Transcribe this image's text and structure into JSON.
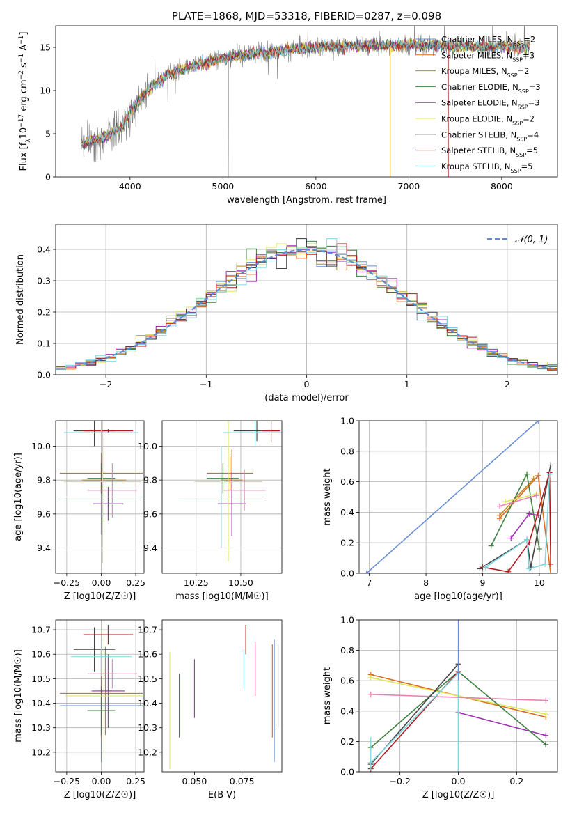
{
  "colors": {
    "series": [
      "#6a8fd6",
      "#e06a1c",
      "#c28414",
      "#3f8040",
      "#9e2fb0",
      "#dce65a",
      "#444444",
      "#b3171d",
      "#7fd6df"
    ],
    "pink": "#e97fb5",
    "raw_spectrum": "#808080",
    "normal_curve": "#5b8ad6",
    "grid": "#b0b0b0"
  },
  "chart_data": [
    {
      "id": "spectrum",
      "type": "line",
      "title": "PLATE=1868, MJD=53318, FIBERID=0287, z=0.098",
      "xlabel": "wavelength [Angstrom, rest frame]",
      "ylabel": "Flux [f_λ10^-17 erg cm^-2 s^-1 A^-1]",
      "xlim": [
        3200,
        8600
      ],
      "ylim": [
        0,
        17.5
      ],
      "xticks": [
        4000,
        5000,
        6000,
        7000,
        8000
      ],
      "yticks": [
        0,
        5,
        10,
        15
      ],
      "grid": false,
      "legend_position": "top-right",
      "series": [
        {
          "name": "Chabrier MILES, N_SSP=2"
        },
        {
          "name": "Salpeter MILES, N_SSP=3"
        },
        {
          "name": "Kroupa MILES, N_SSP=2"
        },
        {
          "name": "Chabrier ELODIE, N_SSP=3"
        },
        {
          "name": "Salpeter ELODIE, N_SSP=3"
        },
        {
          "name": "Kroupa ELODIE, N_SSP=2"
        },
        {
          "name": "Chabrier STELIB, N_SSP=4"
        },
        {
          "name": "Salpeter STELIB, N_SSP=5"
        },
        {
          "name": "Kroupa STELIB, N_SSP=5"
        }
      ],
      "continuum": {
        "x": [
          3500,
          3700,
          3900,
          4000,
          4200,
          4400,
          4700,
          5000,
          5300,
          5600,
          6000,
          6500,
          7000,
          7400,
          8300
        ],
        "y": [
          3.9,
          4.5,
          5.6,
          7.5,
          10.2,
          11.8,
          12.9,
          13.8,
          14.2,
          14.6,
          15.0,
          15.2,
          15.3,
          15.2,
          15.0
        ]
      }
    },
    {
      "id": "residuals",
      "type": "histogram",
      "xlabel": "(data-model)/error",
      "ylabel": "Normed distribution",
      "xlim": [
        -2.5,
        2.5
      ],
      "ylim": [
        0,
        0.48
      ],
      "xticks": [
        -2,
        -1,
        0,
        1,
        2
      ],
      "yticks": [
        0.0,
        0.1,
        0.2,
        0.3,
        0.4
      ],
      "grid": true,
      "legend_position": "top-right",
      "reference_curve": {
        "name": "𝒩(0, 1)",
        "mean": 0,
        "sigma": 1
      },
      "bin_width": 0.1
    },
    {
      "id": "age-vs-Z",
      "type": "errorbar",
      "xlabel": "Z [log10(Z/Z☉)]",
      "ylabel": "age [log10(age/yr)]",
      "xlim": [
        -0.33,
        0.31
      ],
      "ylim": [
        9.25,
        10.15
      ],
      "xticks": [
        -0.25,
        0.0,
        0.25
      ],
      "yticks": [
        9.4,
        9.6,
        9.8,
        10.0
      ],
      "grid": true,
      "points": [
        {
          "series": 0,
          "x": 0.0,
          "y": 9.7,
          "xerr": 0.3,
          "yerr": 0.22
        },
        {
          "series": 1,
          "x": 0.0,
          "y": 9.84,
          "xerr": 0.3,
          "yerr": 0.12
        },
        {
          "series": 2,
          "x": 0.02,
          "y": 9.8,
          "xerr": 0.16,
          "yerr": 0.25
        },
        {
          "series": 3,
          "x": 0.0,
          "y": 9.81,
          "xerr": 0.1,
          "yerr": 0.09
        },
        {
          "series": 4,
          "x": 0.05,
          "y": 9.66,
          "xerr": 0.11,
          "yerr": 0.1
        },
        {
          "series": 5,
          "x": 0.01,
          "y": 9.79,
          "xerr": 0.28,
          "yerr": 0.48
        },
        {
          "series": 6,
          "x": -0.05,
          "y": 10.09,
          "xerr": 0.15,
          "yerr": 0.09
        },
        {
          "series": 7,
          "x": 0.05,
          "y": 10.09,
          "xerr": 0.18,
          "yerr": 0.01
        },
        {
          "series": 8,
          "x": 0.0,
          "y": 10.08,
          "xerr": 0.27,
          "yerr": 0.02
        },
        {
          "series": "pink",
          "x": 0.08,
          "y": 9.74,
          "xerr": 0.18,
          "yerr": 0.16
        }
      ]
    },
    {
      "id": "age-vs-mass",
      "type": "errorbar",
      "xlabel": "mass [log10(M/M☉)]",
      "ylabel": "",
      "xlim": [
        10.06,
        10.73
      ],
      "ylim": [
        9.25,
        10.15
      ],
      "xticks": [
        10.25,
        10.5
      ],
      "xtick_labels": [
        "10.25",
        "10.50"
      ],
      "yticks": [
        9.4,
        9.6,
        9.8,
        10.0
      ],
      "grid": true,
      "points": [
        {
          "series": 0,
          "x": 10.39,
          "y": 9.7,
          "xerr": 0.24,
          "yerr": 0.3
        },
        {
          "series": 1,
          "x": 10.44,
          "y": 9.84,
          "xerr": 0.13,
          "yerr": 0.1
        },
        {
          "series": 2,
          "x": 10.45,
          "y": 9.8,
          "xerr": 0.06,
          "yerr": 0.18
        },
        {
          "series": 3,
          "x": 10.4,
          "y": 9.81,
          "xerr": 0.09,
          "yerr": 0.09
        },
        {
          "series": 4,
          "x": 10.45,
          "y": 9.66,
          "xerr": 0.08,
          "yerr": 0.19
        },
        {
          "series": 5,
          "x": 10.43,
          "y": 9.79,
          "xerr": 0.19,
          "yerr": 0.47
        },
        {
          "series": 6,
          "x": 10.59,
          "y": 10.09,
          "xerr": 0.13,
          "yerr": 0.06
        },
        {
          "series": 7,
          "x": 10.67,
          "y": 10.09,
          "xerr": 0.05,
          "yerr": 0.07
        },
        {
          "series": 8,
          "x": 10.58,
          "y": 10.08,
          "xerr": 0.18,
          "yerr": 0.08
        },
        {
          "series": "pink",
          "x": 10.52,
          "y": 9.74,
          "xerr": 0.12,
          "yerr": 0.12
        }
      ]
    },
    {
      "id": "massweight-vs-age",
      "type": "line",
      "xlabel": "age [log10(age/yr)]",
      "ylabel": "mass weight",
      "xlim": [
        6.82,
        10.32
      ],
      "ylim": [
        0,
        1.0
      ],
      "xticks": [
        7,
        8,
        9,
        10
      ],
      "yticks": [
        0.0,
        0.2,
        0.4,
        0.6,
        0.8,
        1.0
      ],
      "grid": true,
      "series": [
        {
          "color": 0,
          "points": [
            [
              6.95,
              0.0
            ],
            [
              9.98,
              1.0
            ]
          ]
        },
        {
          "color": 1,
          "points": [
            [
              9.3,
              0.36
            ],
            [
              9.98,
              0.64
            ],
            [
              10.2,
              0.0
            ]
          ]
        },
        {
          "color": 2,
          "points": [
            [
              9.3,
              0.38
            ],
            [
              9.9,
              0.62
            ]
          ]
        },
        {
          "color": 3,
          "points": [
            [
              9.15,
              0.18
            ],
            [
              9.78,
              0.65
            ],
            [
              10.0,
              0.16
            ]
          ]
        },
        {
          "color": 4,
          "points": [
            [
              9.5,
              0.23
            ],
            [
              9.82,
              0.39
            ],
            [
              9.98,
              0.38
            ]
          ]
        },
        {
          "color": 5,
          "points": [
            [
              9.4,
              0.47
            ],
            [
              9.95,
              0.52
            ]
          ]
        },
        {
          "color": 6,
          "points": [
            [
              8.95,
              0.03
            ],
            [
              9.78,
              0.22
            ],
            [
              9.85,
              0.04
            ],
            [
              10.2,
              0.71
            ]
          ]
        },
        {
          "color": 7,
          "points": [
            [
              9.0,
              0.04
            ],
            [
              9.45,
              0.01
            ],
            [
              9.82,
              0.2
            ],
            [
              10.18,
              0.66
            ],
            [
              10.2,
              0.06
            ]
          ]
        },
        {
          "color": 8,
          "points": [
            [
              9.05,
              0.04
            ],
            [
              9.78,
              0.22
            ],
            [
              9.82,
              0.03
            ],
            [
              10.1,
              0.06
            ],
            [
              10.18,
              0.65
            ]
          ]
        },
        {
          "color": "pink",
          "points": [
            [
              9.3,
              0.44
            ],
            [
              9.95,
              0.51
            ]
          ]
        }
      ]
    },
    {
      "id": "mass-vs-Z",
      "type": "errorbar",
      "xlabel": "Z [log10(Z/Z☉)]",
      "ylabel": "mass [log10(M/M☉)]",
      "xlim": [
        -0.33,
        0.31
      ],
      "ylim": [
        10.12,
        10.74
      ],
      "xticks": [
        -0.25,
        0.0,
        0.25
      ],
      "yticks": [
        10.2,
        10.3,
        10.4,
        10.5,
        10.6,
        10.7
      ],
      "grid": true,
      "points": [
        {
          "series": 0,
          "x": 0.0,
          "y": 10.39,
          "xerr": 0.3,
          "yerr": 0.23
        },
        {
          "series": 1,
          "x": 0.0,
          "y": 10.44,
          "xerr": 0.3,
          "yerr": 0.18
        },
        {
          "series": 2,
          "x": 0.03,
          "y": 10.45,
          "xerr": 0.05,
          "yerr": 0.18
        },
        {
          "series": 3,
          "x": 0.0,
          "y": 10.37,
          "xerr": 0.1,
          "yerr": 0.1
        },
        {
          "series": 4,
          "x": 0.05,
          "y": 10.45,
          "xerr": 0.12,
          "yerr": 0.15
        },
        {
          "series": 5,
          "x": 0.02,
          "y": 10.43,
          "xerr": 0.28,
          "yerr": 0.27
        },
        {
          "series": 6,
          "x": -0.05,
          "y": 10.62,
          "xerr": 0.15,
          "yerr": 0.09
        },
        {
          "series": 7,
          "x": 0.05,
          "y": 10.68,
          "xerr": 0.18,
          "yerr": 0.04
        },
        {
          "series": 8,
          "x": 0.0,
          "y": 10.59,
          "xerr": 0.22,
          "yerr": 0.08
        },
        {
          "series": "pink",
          "x": 0.08,
          "y": 10.52,
          "xerr": 0.18,
          "yerr": 0.06
        }
      ]
    },
    {
      "id": "mass-vs-ebv",
      "type": "errorbar",
      "xlabel": "E(B-V)",
      "ylabel": "",
      "xlim": [
        0.033,
        0.096
      ],
      "ylim": [
        10.12,
        10.74
      ],
      "xticks": [
        0.05,
        0.075
      ],
      "xtick_labels": [
        "0.050",
        "0.075"
      ],
      "yticks": [
        10.2,
        10.3,
        10.4,
        10.5,
        10.6,
        10.7
      ],
      "grid": false,
      "points": [
        {
          "series": 5,
          "x": 0.037,
          "y": 10.37,
          "yerr": 0.24
        },
        {
          "series": 3,
          "x": 0.042,
          "y": 10.39,
          "yerr": 0.13
        },
        {
          "series": 4,
          "x": 0.05,
          "y": 10.46,
          "yerr": 0.12
        },
        {
          "series": 8,
          "x": 0.076,
          "y": 10.54,
          "yerr": 0.08
        },
        {
          "series": 7,
          "x": 0.077,
          "y": 10.66,
          "yerr": 0.06
        },
        {
          "series": "pink",
          "x": 0.082,
          "y": 10.54,
          "yerr": 0.11
        },
        {
          "series": 1,
          "x": 0.091,
          "y": 10.45,
          "yerr": 0.19
        },
        {
          "series": 0,
          "x": 0.092,
          "y": 10.41,
          "yerr": 0.25
        },
        {
          "series": 6,
          "x": 0.094,
          "y": 10.47,
          "yerr": 0.17
        }
      ]
    },
    {
      "id": "massweight-vs-Z",
      "type": "line",
      "xlabel": "Z [log10(Z/Z☉)]",
      "ylabel": "mass weight",
      "xlim": [
        -0.34,
        0.34
      ],
      "ylim": [
        0,
        1.0
      ],
      "xticks": [
        -0.2,
        0.0,
        0.2
      ],
      "xtick_labels": [
        "−0.2",
        "0.0",
        "0.2"
      ],
      "yticks": [
        0.0,
        0.2,
        0.4,
        0.6,
        0.8,
        1.0
      ],
      "grid": true,
      "series": [
        {
          "color": 1,
          "points": [
            [
              -0.3,
              0.64
            ],
            [
              0.3,
              0.36
            ]
          ]
        },
        {
          "color": 5,
          "points": [
            [
              -0.3,
              0.62
            ],
            [
              0.3,
              0.38
            ]
          ]
        },
        {
          "color": "pink",
          "points": [
            [
              -0.3,
              0.51
            ],
            [
              0.3,
              0.47
            ]
          ]
        },
        {
          "color": 4,
          "points": [
            [
              0.0,
              0.39
            ],
            [
              0.3,
              0.24
            ]
          ]
        },
        {
          "color": 3,
          "points": [
            [
              -0.3,
              0.16
            ],
            [
              0.0,
              0.66
            ],
            [
              0.3,
              0.18
            ]
          ]
        },
        {
          "color": 6,
          "points": [
            [
              -0.3,
              0.05
            ],
            [
              0.0,
              0.71
            ]
          ]
        },
        {
          "color": 7,
          "points": [
            [
              -0.3,
              0.02
            ],
            [
              0.0,
              0.66
            ]
          ]
        },
        {
          "color": 8,
          "points": [
            [
              -0.3,
              0.06
            ],
            [
              0.0,
              0.65
            ]
          ]
        }
      ],
      "errorbars": [
        {
          "color": 0,
          "x": 0.0,
          "y": 0.38,
          "yerr": 0.62
        },
        {
          "color": 8,
          "x": 0.0,
          "y": 0.3,
          "yerr": 0.3
        },
        {
          "color": 8,
          "x": -0.3,
          "y": 0.12,
          "yerr": 0.11
        },
        {
          "color": 6,
          "x": 0.3,
          "y": 0.18,
          "yerr": 0.02
        }
      ]
    }
  ]
}
